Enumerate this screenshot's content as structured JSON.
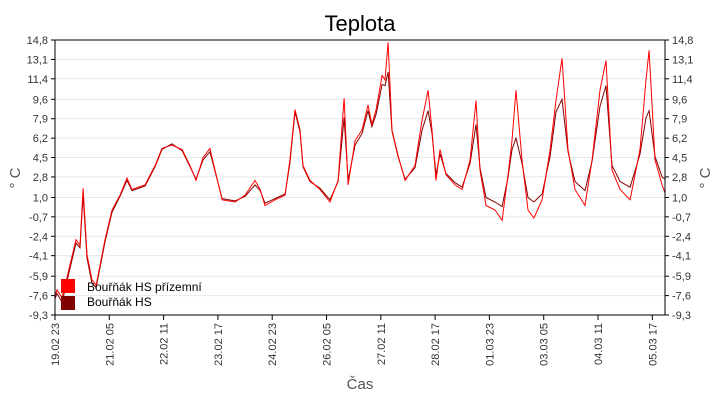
{
  "chart_data": {
    "type": "line",
    "title": "Teplota",
    "xlabel": "Čas",
    "ylabel": "° C",
    "y_ticks": [
      "14,8",
      "13,1",
      "11,4",
      "9,6",
      "7,9",
      "6,2",
      "4,5",
      "2,8",
      "1,0",
      "-0,7",
      "-2,4",
      "-4,1",
      "-5,9",
      "-7,6",
      "-9,3"
    ],
    "y_tick_values": [
      14.8,
      13.1,
      11.4,
      9.6,
      7.9,
      6.2,
      4.5,
      2.8,
      1.0,
      -0.7,
      -2.4,
      -4.1,
      -5.9,
      -7.6,
      -9.3
    ],
    "ylim": [
      -9.3,
      14.8
    ],
    "x_unit": "hours since 19.02 23:00",
    "xlim": [
      0,
      337
    ],
    "x_ticks": [
      "19.02 23",
      "21.02 05",
      "22.02 11",
      "23.02 17",
      "24.02 23",
      "26.02 05",
      "27.02 11",
      "28.02 17",
      "01.03 23",
      "03.03 05",
      "04.03 11",
      "05.03 17"
    ],
    "x_tick_values": [
      0,
      30,
      60,
      90,
      120,
      150,
      180,
      210,
      240,
      270,
      300,
      330
    ],
    "grid": "horizontal",
    "legend_position": "bottom-left",
    "series": [
      {
        "name": "Bouřňák HS přízemní",
        "color": "#ff0000",
        "points": [
          [
            0,
            -7.6
          ],
          [
            1.1,
            -7.1
          ],
          [
            3.9,
            -7.8
          ],
          [
            8.3,
            -4.9
          ],
          [
            11.6,
            -2.7
          ],
          [
            13.8,
            -3.2
          ],
          [
            15.5,
            1.8
          ],
          [
            17.7,
            -4.0
          ],
          [
            20.4,
            -6.2
          ],
          [
            22.7,
            -6.7
          ],
          [
            24.9,
            -4.9
          ],
          [
            27.6,
            -2.7
          ],
          [
            31.5,
            -0.1
          ],
          [
            35.9,
            1.2
          ],
          [
            39.8,
            2.7
          ],
          [
            42.5,
            1.7
          ],
          [
            49.7,
            2.1
          ],
          [
            55.3,
            3.8
          ],
          [
            59.1,
            5.3
          ],
          [
            64.6,
            5.6
          ],
          [
            70.2,
            5.2
          ],
          [
            74.6,
            3.8
          ],
          [
            77.9,
            2.5
          ],
          [
            81.8,
            4.5
          ],
          [
            85.6,
            5.3
          ],
          [
            88.4,
            3.4
          ],
          [
            92.3,
            0.8
          ],
          [
            99.5,
            0.6
          ],
          [
            105,
            1.2
          ],
          [
            110.5,
            2.5
          ],
          [
            113.3,
            1.7
          ],
          [
            116,
            0.3
          ],
          [
            121.6,
            0.8
          ],
          [
            127.1,
            1.2
          ],
          [
            129.8,
            4.3
          ],
          [
            132.6,
            8.7
          ],
          [
            135.4,
            6.9
          ],
          [
            137,
            3.8
          ],
          [
            140.9,
            2.5
          ],
          [
            146.4,
            1.7
          ],
          [
            151.9,
            0.6
          ],
          [
            156.4,
            2.5
          ],
          [
            159.7,
            9.7
          ],
          [
            161.9,
            2.1
          ],
          [
            165.8,
            6.0
          ],
          [
            169.6,
            6.9
          ],
          [
            172.9,
            9.1
          ],
          [
            175.1,
            7.4
          ],
          [
            177.4,
            8.7
          ],
          [
            180.7,
            11.7
          ],
          [
            182.3,
            11.3
          ],
          [
            184,
            14.6
          ],
          [
            186.2,
            6.9
          ],
          [
            189.5,
            4.7
          ],
          [
            193.4,
            2.5
          ],
          [
            198.9,
            3.8
          ],
          [
            202.8,
            7.8
          ],
          [
            206.1,
            10.4
          ],
          [
            208.3,
            6.9
          ],
          [
            210.5,
            2.5
          ],
          [
            212.7,
            5.2
          ],
          [
            216,
            3.0
          ],
          [
            221,
            2.1
          ],
          [
            224.9,
            1.7
          ],
          [
            229.3,
            4.3
          ],
          [
            232.6,
            9.5
          ],
          [
            234.8,
            3.4
          ],
          [
            238.1,
            0.3
          ],
          [
            243.1,
            -0.1
          ],
          [
            247,
            -1.0
          ],
          [
            250.3,
            3.0
          ],
          [
            252.5,
            6.0
          ],
          [
            254.7,
            10.4
          ],
          [
            258,
            4.3
          ],
          [
            261.3,
            -0.1
          ],
          [
            264.6,
            -0.8
          ],
          [
            269.1,
            0.8
          ],
          [
            273.5,
            5.2
          ],
          [
            276.8,
            9.5
          ],
          [
            280.1,
            13.2
          ],
          [
            283.4,
            5.2
          ],
          [
            287.3,
            1.7
          ],
          [
            292.8,
            0.3
          ],
          [
            296.7,
            4.3
          ],
          [
            301.1,
            10.4
          ],
          [
            304.4,
            13.0
          ],
          [
            307.7,
            3.4
          ],
          [
            312.2,
            1.7
          ],
          [
            317.7,
            0.8
          ],
          [
            323.2,
            5.2
          ],
          [
            326.5,
            11.3
          ],
          [
            328.2,
            13.9
          ],
          [
            331.5,
            4.3
          ],
          [
            335.4,
            2.1
          ],
          [
            337,
            1.4
          ]
        ]
      },
      {
        "name": "Bouřňák HS",
        "color": "#800000",
        "points": [
          [
            0,
            -7.9
          ],
          [
            1.1,
            -7.4
          ],
          [
            3.9,
            -8.2
          ],
          [
            8.3,
            -5.2
          ],
          [
            11.6,
            -3.0
          ],
          [
            13.8,
            -3.4
          ],
          [
            15.5,
            1.2
          ],
          [
            17.7,
            -4.3
          ],
          [
            20.4,
            -6.5
          ],
          [
            22.7,
            -6.9
          ],
          [
            24.9,
            -5.1
          ],
          [
            27.6,
            -2.9
          ],
          [
            31.5,
            -0.3
          ],
          [
            35.9,
            1.1
          ],
          [
            39.8,
            2.5
          ],
          [
            42.5,
            1.6
          ],
          [
            49.7,
            2.0
          ],
          [
            55.3,
            3.7
          ],
          [
            59.1,
            5.2
          ],
          [
            64.6,
            5.7
          ],
          [
            70.2,
            5.1
          ],
          [
            74.6,
            3.7
          ],
          [
            77.9,
            2.6
          ],
          [
            81.8,
            4.3
          ],
          [
            85.6,
            5.0
          ],
          [
            88.4,
            3.3
          ],
          [
            92.3,
            0.9
          ],
          [
            99.5,
            0.7
          ],
          [
            105,
            1.1
          ],
          [
            110.5,
            2.1
          ],
          [
            113.3,
            1.6
          ],
          [
            116,
            0.5
          ],
          [
            121.6,
            0.9
          ],
          [
            127.1,
            1.3
          ],
          [
            129.8,
            4.0
          ],
          [
            132.6,
            8.5
          ],
          [
            135.4,
            6.7
          ],
          [
            137,
            3.7
          ],
          [
            140.9,
            2.4
          ],
          [
            146.4,
            1.8
          ],
          [
            151.9,
            0.8
          ],
          [
            156.4,
            2.4
          ],
          [
            159.7,
            8.0
          ],
          [
            161.9,
            2.5
          ],
          [
            165.8,
            5.6
          ],
          [
            169.6,
            6.6
          ],
          [
            172.9,
            8.6
          ],
          [
            175.1,
            7.2
          ],
          [
            177.4,
            8.3
          ],
          [
            180.7,
            10.9
          ],
          [
            182.3,
            10.8
          ],
          [
            184,
            12.0
          ],
          [
            186.2,
            6.8
          ],
          [
            189.5,
            4.6
          ],
          [
            193.4,
            2.6
          ],
          [
            198.9,
            3.6
          ],
          [
            202.8,
            6.9
          ],
          [
            206.1,
            8.6
          ],
          [
            208.3,
            6.6
          ],
          [
            210.5,
            3.0
          ],
          [
            212.7,
            4.8
          ],
          [
            216,
            3.1
          ],
          [
            221,
            2.3
          ],
          [
            224.9,
            1.9
          ],
          [
            229.3,
            4.0
          ],
          [
            232.6,
            7.4
          ],
          [
            234.8,
            3.6
          ],
          [
            238.1,
            1.0
          ],
          [
            243.1,
            0.6
          ],
          [
            247,
            0.2
          ],
          [
            250.3,
            2.8
          ],
          [
            252.5,
            5.2
          ],
          [
            254.7,
            6.2
          ],
          [
            258,
            4.0
          ],
          [
            261.3,
            1.0
          ],
          [
            264.6,
            0.6
          ],
          [
            269.1,
            1.3
          ],
          [
            273.5,
            4.6
          ],
          [
            276.8,
            8.5
          ],
          [
            280.1,
            9.6
          ],
          [
            283.4,
            5.0
          ],
          [
            287.3,
            2.4
          ],
          [
            292.8,
            1.6
          ],
          [
            296.7,
            4.2
          ],
          [
            301.1,
            9.0
          ],
          [
            304.4,
            10.8
          ],
          [
            307.7,
            3.8
          ],
          [
            312.2,
            2.4
          ],
          [
            317.7,
            1.9
          ],
          [
            323.2,
            4.8
          ],
          [
            326.5,
            8.0
          ],
          [
            328.2,
            8.6
          ],
          [
            331.5,
            4.6
          ],
          [
            335.4,
            2.8
          ],
          [
            337,
            2.6
          ]
        ]
      }
    ]
  }
}
